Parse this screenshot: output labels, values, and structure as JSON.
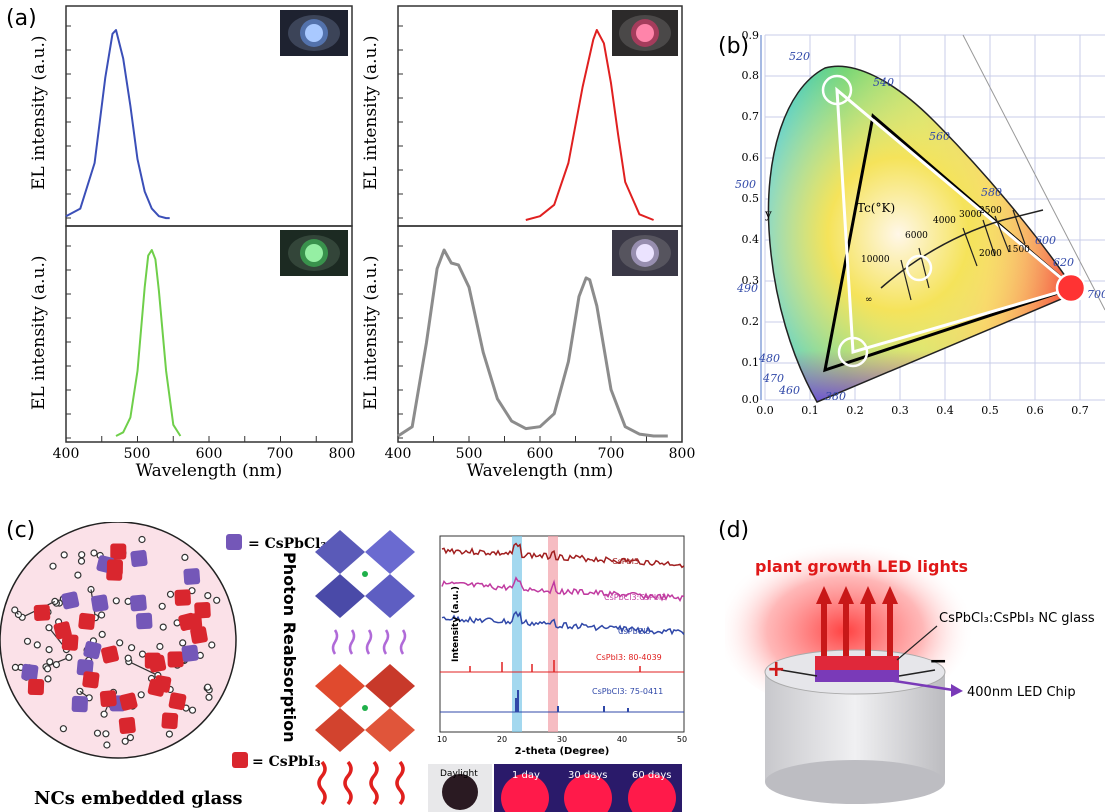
{
  "panel_labels": {
    "a": "(a)",
    "b": "(b)",
    "c": "(c)",
    "d": "(d)"
  },
  "panel_a": {
    "ylabel": "EL intensity (a.u.)",
    "xlabel": "Wavelength (nm)",
    "x_ticks_left": [
      "400",
      "500",
      "600",
      "700",
      "800"
    ],
    "x_ticks_right": [
      "400",
      "500",
      "600",
      "700",
      "800"
    ]
  },
  "chart_data": [
    {
      "type": "line",
      "panel": "a-top-left",
      "color": "#3b4fb8",
      "xlim": [
        400,
        800
      ],
      "x": [
        400,
        420,
        440,
        455,
        465,
        470,
        480,
        490,
        500,
        510,
        520,
        530,
        540,
        545
      ],
      "y": [
        0.02,
        0.06,
        0.3,
        0.75,
        0.98,
        1.0,
        0.85,
        0.6,
        0.32,
        0.15,
        0.06,
        0.02,
        0.01,
        0.01
      ]
    },
    {
      "type": "line",
      "panel": "a-top-right",
      "color": "#e02020",
      "xlim": [
        400,
        800
      ],
      "x": [
        580,
        600,
        620,
        640,
        660,
        675,
        680,
        690,
        700,
        710,
        720,
        740,
        760
      ],
      "y": [
        0.0,
        0.02,
        0.08,
        0.3,
        0.7,
        0.95,
        1.0,
        0.93,
        0.72,
        0.45,
        0.2,
        0.03,
        0.0
      ]
    },
    {
      "type": "line",
      "panel": "a-bottom-left",
      "color": "#6fcf4a",
      "xlim": [
        400,
        800
      ],
      "x": [
        470,
        480,
        490,
        500,
        510,
        515,
        520,
        525,
        530,
        540,
        550,
        560
      ],
      "y": [
        0.0,
        0.02,
        0.1,
        0.35,
        0.8,
        0.97,
        1.0,
        0.95,
        0.78,
        0.35,
        0.06,
        0.0
      ]
    },
    {
      "type": "line",
      "panel": "a-bottom-right",
      "color": "#8c8c8c",
      "xlim": [
        400,
        800
      ],
      "x": [
        400,
        420,
        440,
        455,
        465,
        475,
        485,
        500,
        520,
        540,
        560,
        580,
        600,
        620,
        640,
        655,
        665,
        670,
        680,
        700,
        720,
        740,
        760,
        780
      ],
      "y": [
        0.0,
        0.05,
        0.5,
        0.9,
        1.0,
        0.93,
        0.92,
        0.8,
        0.45,
        0.2,
        0.08,
        0.04,
        0.05,
        0.12,
        0.4,
        0.75,
        0.85,
        0.84,
        0.7,
        0.25,
        0.05,
        0.01,
        0.0,
        0.0
      ]
    },
    {
      "type": "scatter",
      "panel": "b",
      "title": "",
      "xlabel": "",
      "ylabel": "y",
      "wavelength_labels": [
        "520",
        "540",
        "560",
        "580",
        "600",
        "620",
        "700",
        "500",
        "490",
        "480",
        "470",
        "460",
        "380"
      ],
      "y_ticks": [
        "0.0",
        "0.1",
        "0.2",
        "0.3",
        "0.4",
        "0.5",
        "0.6",
        "0.7",
        "0.8",
        "0.9"
      ],
      "x_ticks": [
        "0.0",
        "0.1",
        "0.2",
        "0.3",
        "0.4",
        "0.5",
        "0.6",
        "0.7",
        "0.8"
      ],
      "locus_labels": [
        "10000",
        "6000",
        "4000",
        "3000",
        "2500",
        "2000",
        "1500",
        "∞"
      ],
      "locus_title": "Tc(°K)",
      "points": [
        {
          "x": 0.12,
          "y": 0.78
        },
        {
          "x": 0.32,
          "y": 0.32
        },
        {
          "x": 0.68,
          "y": 0.28
        },
        {
          "x": 0.16,
          "y": 0.1
        }
      ]
    },
    {
      "type": "line",
      "panel": "c-xrd",
      "xlabel": "2-theta (Degree)",
      "ylabel": "Intensity (a.u.)",
      "xlim": [
        10,
        50
      ],
      "x_ticks": [
        "10",
        "20",
        "30",
        "40",
        "50"
      ],
      "series": [
        {
          "name": "CsPbI3"
        },
        {
          "name": "CsPbCl3:CsPbI3"
        },
        {
          "name": "CsPbCl3"
        }
      ],
      "references": [
        "CsPbI3: 80-4039",
        "CsPbCl3: 75-0411"
      ]
    }
  ],
  "panel_c": {
    "legend_cl": "= CsPbCl₃",
    "legend_i": "= CsPbI₃",
    "caption": "NCs embedded glass",
    "side_text": "Photon Reabsorption",
    "photos": [
      "Daylight",
      "1 day",
      "30 days",
      "60 days"
    ]
  },
  "panel_d": {
    "title": "plant growth LED lights",
    "glass_label": "CsPbCl₃:CsPbI₃ NC glass",
    "chip_label": "400nm LED Chip",
    "plus": "+",
    "minus": "−"
  }
}
